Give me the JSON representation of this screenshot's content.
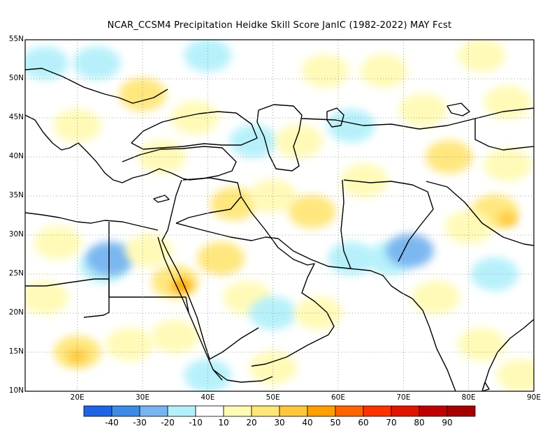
{
  "title": "NCAR_CCSM4  Precipitation Heidke Skill Score JanIC (1982-2022) MAY Fcst",
  "map": {
    "lon_range": [
      12,
      90
    ],
    "lat_range": [
      10,
      55
    ],
    "lat_ticks": [
      {
        "value": 55,
        "label": "55N"
      },
      {
        "value": 50,
        "label": "50N"
      },
      {
        "value": 45,
        "label": "45N"
      },
      {
        "value": 40,
        "label": "40N"
      },
      {
        "value": 35,
        "label": "35N"
      },
      {
        "value": 30,
        "label": "30N"
      },
      {
        "value": 25,
        "label": "25N"
      },
      {
        "value": 20,
        "label": "20N"
      },
      {
        "value": 15,
        "label": "15N"
      },
      {
        "value": 10,
        "label": "10N"
      }
    ],
    "lon_ticks": [
      {
        "value": 20,
        "label": "20E"
      },
      {
        "value": 30,
        "label": "30E"
      },
      {
        "value": 40,
        "label": "40E"
      },
      {
        "value": 50,
        "label": "50E"
      },
      {
        "value": 60,
        "label": "60E"
      },
      {
        "value": 70,
        "label": "70E"
      },
      {
        "value": 80,
        "label": "80E"
      },
      {
        "value": 90,
        "label": "90E"
      }
    ],
    "gridlines": "dotted"
  },
  "colorbar": {
    "bins": [
      {
        "color": "#1f64e6"
      },
      {
        "color": "#3c8ce6"
      },
      {
        "color": "#78b4f0"
      },
      {
        "color": "#b4f0fa"
      },
      {
        "color": "#ffffff"
      },
      {
        "color": "#fffab4"
      },
      {
        "color": "#ffe678"
      },
      {
        "color": "#ffc83c"
      },
      {
        "color": "#ffa000"
      },
      {
        "color": "#ff6400"
      },
      {
        "color": "#ff3200"
      },
      {
        "color": "#e11400"
      },
      {
        "color": "#c00000"
      },
      {
        "color": "#a50000"
      }
    ],
    "labels": [
      "-40",
      "-30",
      "-20",
      "-10",
      "10",
      "20",
      "30",
      "40",
      "50",
      "60",
      "70",
      "80",
      "90"
    ]
  },
  "patches": [
    {
      "lon": 15,
      "lat": 52,
      "value": -12
    },
    {
      "lon": 23,
      "lat": 52,
      "value": -12
    },
    {
      "lon": 40,
      "lat": 53,
      "value": -12
    },
    {
      "lon": 58,
      "lat": 51,
      "value": 14
    },
    {
      "lon": 67,
      "lat": 51,
      "value": 18
    },
    {
      "lon": 82,
      "lat": 53,
      "value": 16
    },
    {
      "lon": 30,
      "lat": 48,
      "value": 22
    },
    {
      "lon": 38,
      "lat": 45,
      "value": 14
    },
    {
      "lon": 47,
      "lat": 42,
      "value": -12
    },
    {
      "lon": 54,
      "lat": 42,
      "value": 16
    },
    {
      "lon": 62,
      "lat": 44,
      "value": -12
    },
    {
      "lon": 73,
      "lat": 46,
      "value": 18
    },
    {
      "lon": 86,
      "lat": 47,
      "value": 14
    },
    {
      "lon": 20,
      "lat": 44,
      "value": 14
    },
    {
      "lon": 33,
      "lat": 40,
      "value": 16
    },
    {
      "lon": 77,
      "lat": 40,
      "value": 20
    },
    {
      "lon": 86,
      "lat": 39,
      "value": 16
    },
    {
      "lon": 44,
      "lat": 34,
      "value": 20
    },
    {
      "lon": 50,
      "lat": 35,
      "value": 18
    },
    {
      "lon": 56,
      "lat": 33,
      "value": 20
    },
    {
      "lon": 64,
      "lat": 37,
      "value": 14
    },
    {
      "lon": 84,
      "lat": 33,
      "value": 24
    },
    {
      "lon": 86,
      "lat": 32,
      "value": 36
    },
    {
      "lon": 80,
      "lat": 31,
      "value": 16
    },
    {
      "lon": 17,
      "lat": 29,
      "value": 18
    },
    {
      "lon": 24,
      "lat": 26,
      "value": -14
    },
    {
      "lon": 25,
      "lat": 27,
      "value": -24
    },
    {
      "lon": 31,
      "lat": 28,
      "value": 14
    },
    {
      "lon": 35,
      "lat": 24,
      "value": 26
    },
    {
      "lon": 36,
      "lat": 23.5,
      "value": 46
    },
    {
      "lon": 42,
      "lat": 27,
      "value": 20
    },
    {
      "lon": 46,
      "lat": 22,
      "value": 14
    },
    {
      "lon": 50,
      "lat": 20,
      "value": -12
    },
    {
      "lon": 57,
      "lat": 20,
      "value": 16
    },
    {
      "lon": 62,
      "lat": 27,
      "value": -12
    },
    {
      "lon": 68,
      "lat": 27,
      "value": -14
    },
    {
      "lon": 71,
      "lat": 28,
      "value": -24
    },
    {
      "lon": 75,
      "lat": 22,
      "value": 14
    },
    {
      "lon": 84,
      "lat": 25,
      "value": -12
    },
    {
      "lon": 82,
      "lat": 16,
      "value": 16
    },
    {
      "lon": 15,
      "lat": 22,
      "value": 18
    },
    {
      "lon": 20,
      "lat": 15,
      "value": 22
    },
    {
      "lon": 20,
      "lat": 14.5,
      "value": 36
    },
    {
      "lon": 28,
      "lat": 16,
      "value": 14
    },
    {
      "lon": 35,
      "lat": 17,
      "value": 18
    },
    {
      "lon": 40,
      "lat": 12,
      "value": -12
    },
    {
      "lon": 50,
      "lat": 13,
      "value": 14
    },
    {
      "lon": 88,
      "lat": 12,
      "value": 14
    }
  ]
}
